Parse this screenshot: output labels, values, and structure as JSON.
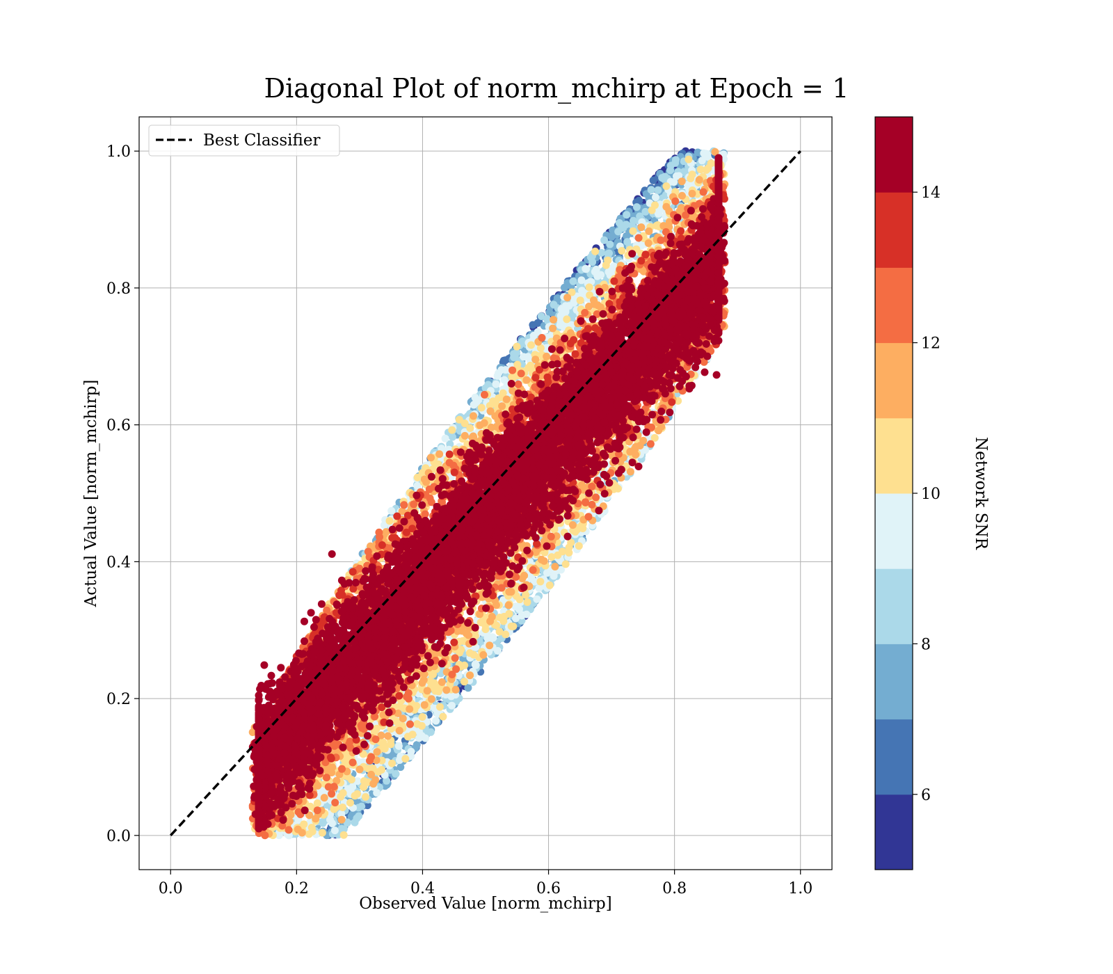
{
  "chart_data": {
    "type": "scatter",
    "title": "Diagonal Plot of norm_mchirp at Epoch = 1",
    "xlabel": "Observed Value [norm_mchirp]",
    "ylabel": "Actual Value [norm_mchirp]",
    "xlim": [
      -0.05,
      1.05
    ],
    "ylim": [
      -0.05,
      1.05
    ],
    "xticks": [
      0.0,
      0.2,
      0.4,
      0.6,
      0.8,
      1.0
    ],
    "yticks": [
      0.0,
      0.2,
      0.4,
      0.6,
      0.8,
      1.0
    ],
    "xtick_labels": [
      "0.0",
      "0.2",
      "0.4",
      "0.6",
      "0.8",
      "1.0"
    ],
    "ytick_labels": [
      "0.0",
      "0.2",
      "0.4",
      "0.6",
      "0.8",
      "1.0"
    ],
    "grid": true,
    "legend": {
      "position": "top-left",
      "entries": [
        "Best Classifier"
      ]
    },
    "reference_line": {
      "name": "Best Classifier",
      "style": "dashed",
      "color": "#000000",
      "points": [
        [
          0.0,
          0.0
        ],
        [
          1.0,
          1.0
        ]
      ]
    },
    "scatter_description": {
      "color_variable": "Network SNR",
      "approx_point_cloud_bounds": {
        "observed_min": 0.13,
        "observed_max": 0.88,
        "actual_min": 0.0,
        "actual_max": 1.0
      }
    },
    "colorbar": {
      "label": "Network SNR",
      "range": [
        5,
        15
      ],
      "ticks": [
        6,
        8,
        10,
        12,
        14
      ],
      "tick_labels": [
        "6",
        "8",
        "10",
        "12",
        "14"
      ],
      "levels": [
        {
          "from": 5,
          "to": 6,
          "color": "#313695"
        },
        {
          "from": 6,
          "to": 7,
          "color": "#4575b4"
        },
        {
          "from": 7,
          "to": 8,
          "color": "#74add1"
        },
        {
          "from": 8,
          "to": 9,
          "color": "#abd9e9"
        },
        {
          "from": 9,
          "to": 10,
          "color": "#e0f3f8"
        },
        {
          "from": 10,
          "to": 11,
          "color": "#fee090"
        },
        {
          "from": 11,
          "to": 12,
          "color": "#fdae61"
        },
        {
          "from": 12,
          "to": 13,
          "color": "#f46d43"
        },
        {
          "from": 13,
          "to": 14,
          "color": "#d73027"
        },
        {
          "from": 14,
          "to": 15,
          "color": "#a50026"
        }
      ]
    }
  }
}
